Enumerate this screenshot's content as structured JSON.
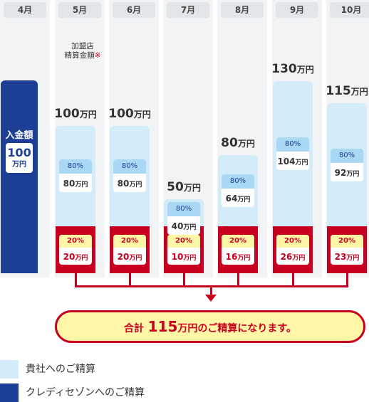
{
  "chart_data": {
    "type": "bar",
    "title": "",
    "categories": [
      "4月",
      "5月",
      "6月",
      "7月",
      "8月",
      "9月",
      "10月"
    ],
    "deposit": {
      "month": "4月",
      "label": "入金額",
      "value": 100,
      "value_label": "100",
      "unit": "万円"
    },
    "settlement_note": {
      "lines": [
        "加盟店",
        "精算金額"
      ],
      "mark": "※"
    },
    "months": [
      {
        "month": "5月",
        "total": 100,
        "total_label": "100",
        "upper_pct": "80%",
        "upper": 80,
        "upper_label": "80",
        "lower_pct": "20%",
        "lower": 20,
        "lower_label": "20"
      },
      {
        "month": "6月",
        "total": 100,
        "total_label": "100",
        "upper_pct": "80%",
        "upper": 80,
        "upper_label": "80",
        "lower_pct": "20%",
        "lower": 20,
        "lower_label": "20"
      },
      {
        "month": "7月",
        "total": 50,
        "total_label": "50",
        "upper_pct": "80%",
        "upper": 40,
        "upper_label": "40",
        "lower_pct": "20%",
        "lower": 10,
        "lower_label": "10"
      },
      {
        "month": "8月",
        "total": 80,
        "total_label": "80",
        "upper_pct": "80%",
        "upper": 64,
        "upper_label": "64",
        "lower_pct": "20%",
        "lower": 16,
        "lower_label": "16"
      },
      {
        "month": "9月",
        "total": 130,
        "total_label": "130",
        "upper_pct": "80%",
        "upper": 104,
        "upper_label": "104",
        "lower_pct": "20%",
        "lower": 26,
        "lower_label": "26"
      },
      {
        "month": "10月",
        "total": 115,
        "total_label": "115",
        "upper_pct": "80%",
        "upper": 92,
        "upper_label": "92",
        "lower_pct": "20%",
        "lower": 23,
        "lower_label": "23"
      }
    ],
    "unit": "万円",
    "summary": {
      "prefix": "合計",
      "value": 115,
      "value_label": "115",
      "suffix": "万円のご精算になります。"
    },
    "legend": [
      {
        "label": "貴社へのご精算",
        "color": "#d4ecf9"
      },
      {
        "label": "クレディセゾンへのご精算",
        "color": "#1d3e95"
      }
    ],
    "colors": {
      "column_bg": "#f1f3f5",
      "month_tab": "#e3e6e9",
      "light_blue": "#d4ecf9",
      "pct_blue": "#a8d8f3",
      "navy": "#1d3e95",
      "red": "#c7001f",
      "yellow": "#fff6a8"
    }
  }
}
